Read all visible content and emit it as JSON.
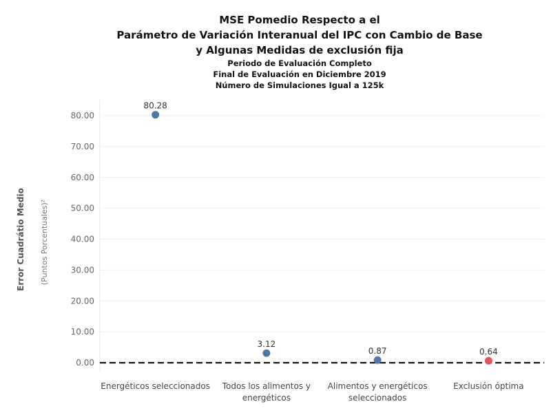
{
  "chart_data": {
    "type": "scatter",
    "title_lines": [
      "MSE Pomedio Respecto a el",
      "Parámetro de Variación Interanual del IPC con Cambio de Base",
      "y Algunas Medidas de exclusión fija"
    ],
    "subtitle_lines": [
      "Periodo de Evaluación Completo",
      "Final de Evaluación en Diciembre 2019",
      "Número de Simulaciones Igual a 125k"
    ],
    "ylabel": "Error Cuadrátio Medio",
    "ylabel_units": "(Puntos Porcentuales)²",
    "categories": [
      "Energéticos seleccionados",
      "Todos los alimentos y energéticos",
      "Alimentos y energéticos seleccionados",
      "Exclusión óptima"
    ],
    "category_label_lines": [
      [
        "Energéticos seleccionados"
      ],
      [
        "Todos los alimentos y",
        "energéticos"
      ],
      [
        "Alimentos y energéticos",
        "seleccionados"
      ],
      [
        "Exclusión óptima"
      ]
    ],
    "values": [
      80.28,
      3.12,
      0.87,
      0.64
    ],
    "value_labels": [
      "80.28",
      "3.12",
      "0.87",
      "0.64"
    ],
    "point_colors": [
      "#4e79a7",
      "#4e79a7",
      "#4e79a7",
      "#e15759"
    ],
    "yticks": [
      0,
      10,
      20,
      30,
      40,
      50,
      60,
      70,
      80
    ],
    "ytick_labels": [
      "0.00",
      "10.00",
      "20.00",
      "30.00",
      "40.00",
      "50.00",
      "60.00",
      "70.00",
      "80.00"
    ],
    "ylim": [
      0,
      80
    ],
    "reference_line": 0,
    "grid": true
  }
}
